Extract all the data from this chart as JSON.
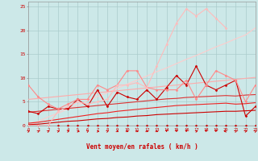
{
  "background_color": "#cce8e8",
  "grid_color": "#aacccc",
  "xlim": [
    0,
    23
  ],
  "ylim": [
    0,
    26
  ],
  "xlabel": "Vent moyen/en rafales ( km/h )",
  "x": [
    0,
    1,
    2,
    3,
    4,
    5,
    6,
    7,
    8,
    9,
    10,
    11,
    12,
    13,
    14,
    15,
    16,
    17,
    18,
    19,
    20,
    21,
    22,
    23
  ],
  "lines": [
    {
      "y": [
        0,
        0,
        0,
        0,
        0,
        0,
        0,
        0,
        0,
        0,
        0,
        0,
        0,
        0,
        0,
        0,
        0,
        0,
        0,
        0,
        0,
        0,
        0,
        0
      ],
      "color": "#cc0000",
      "lw": 0.8,
      "marker": "D",
      "ms": 1.5,
      "zorder": 5
    },
    {
      "y": [
        0.2,
        0.3,
        0.5,
        0.7,
        0.9,
        1.0,
        1.2,
        1.4,
        1.5,
        1.7,
        1.8,
        2.0,
        2.1,
        2.3,
        2.4,
        2.5,
        2.6,
        2.7,
        2.8,
        2.9,
        3.0,
        3.0,
        3.1,
        3.2
      ],
      "color": "#cc0000",
      "lw": 0.8,
      "marker": null,
      "ms": 0,
      "zorder": 4
    },
    {
      "y": [
        0.5,
        0.7,
        1.0,
        1.3,
        1.6,
        1.9,
        2.2,
        2.5,
        2.7,
        3.0,
        3.2,
        3.4,
        3.6,
        3.8,
        4.0,
        4.2,
        4.3,
        4.4,
        4.5,
        4.6,
        4.7,
        4.5,
        4.6,
        4.8
      ],
      "color": "#ee2222",
      "lw": 0.8,
      "marker": null,
      "ms": 0,
      "zorder": 4
    },
    {
      "y": [
        2.8,
        3.0,
        3.2,
        3.4,
        3.6,
        3.8,
        4.0,
        4.2,
        4.4,
        4.6,
        4.8,
        5.0,
        5.2,
        5.4,
        5.6,
        5.7,
        5.9,
        6.0,
        6.1,
        6.2,
        6.3,
        6.2,
        6.4,
        6.5
      ],
      "color": "#dd3333",
      "lw": 0.8,
      "marker": null,
      "ms": 0,
      "zorder": 4
    },
    {
      "y": [
        5.5,
        5.7,
        5.9,
        6.1,
        6.3,
        6.5,
        6.7,
        6.9,
        7.1,
        7.3,
        7.5,
        7.7,
        7.9,
        8.1,
        8.3,
        8.5,
        8.7,
        8.9,
        9.1,
        9.3,
        9.5,
        9.7,
        9.9,
        10.1
      ],
      "color": "#ffaaaa",
      "lw": 0.8,
      "marker": null,
      "ms": 0,
      "zorder": 3
    },
    {
      "y": [
        3.0,
        2.5,
        4.0,
        3.5,
        3.5,
        5.5,
        4.0,
        7.5,
        4.0,
        7.0,
        6.0,
        5.5,
        7.5,
        5.5,
        8.0,
        10.5,
        8.5,
        12.5,
        8.5,
        7.5,
        8.5,
        9.5,
        2.0,
        4.0
      ],
      "color": "#cc0000",
      "lw": 0.8,
      "marker": "D",
      "ms": 1.5,
      "zorder": 5
    },
    {
      "y": [
        8.5,
        6.0,
        4.5,
        3.5,
        4.5,
        5.5,
        5.5,
        8.5,
        7.5,
        8.5,
        11.5,
        11.5,
        8.0,
        7.5,
        7.5,
        7.5,
        9.5,
        5.5,
        8.5,
        11.5,
        10.5,
        9.5,
        5.0,
        8.5
      ],
      "color": "#ff8888",
      "lw": 0.8,
      "marker": "D",
      "ms": 1.5,
      "zorder": 5
    },
    {
      "y": [
        0,
        0,
        0,
        3.0,
        4.0,
        5.0,
        4.5,
        5.0,
        5.5,
        8.5,
        8.5,
        9.0,
        8.0,
        12.5,
        17.0,
        21.5,
        24.5,
        23.0,
        24.5,
        22.5,
        20.5,
        null,
        null,
        null
      ],
      "color": "#ffbbbb",
      "lw": 0.8,
      "marker": "D",
      "ms": 1.5,
      "zorder": 5
    },
    {
      "y": [
        0,
        0.9,
        1.8,
        2.6,
        3.5,
        4.3,
        5.2,
        6.1,
        6.9,
        7.8,
        8.7,
        9.5,
        10.4,
        11.3,
        12.1,
        13.0,
        13.9,
        14.7,
        15.6,
        16.5,
        17.3,
        18.2,
        19.0,
        20.5
      ],
      "color": "#ffcccc",
      "lw": 0.8,
      "marker": null,
      "ms": 0,
      "zorder": 2
    }
  ],
  "yticks": [
    0,
    5,
    10,
    15,
    20,
    25
  ],
  "xticks": [
    0,
    1,
    2,
    3,
    4,
    5,
    6,
    7,
    8,
    9,
    10,
    11,
    12,
    13,
    14,
    15,
    16,
    17,
    18,
    19,
    20,
    21,
    22,
    23
  ],
  "arrow_angles": [
    45,
    45,
    45,
    30,
    30,
    0,
    45,
    0,
    45,
    -45,
    -45,
    -45,
    -45,
    -45,
    -90,
    -90,
    -90,
    30,
    -90,
    -90,
    180,
    45,
    30,
    45
  ]
}
